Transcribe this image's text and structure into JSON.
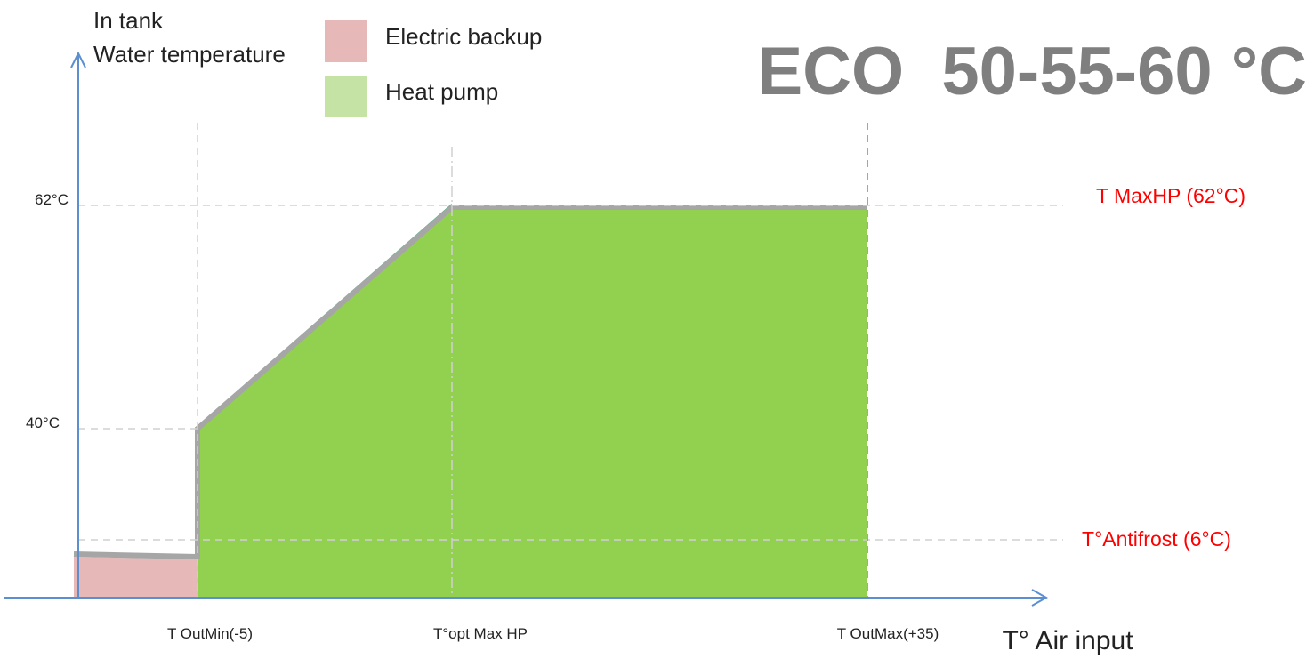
{
  "axis": {
    "y_title": [
      "In tank",
      "Water temperature"
    ],
    "x_title": "T° Air input",
    "y_labels": [
      "62°C",
      "40°C"
    ],
    "x_labels": [
      "T OutMin(-5)",
      "T°opt Max HP",
      "T OutMax(+35)"
    ]
  },
  "legend": [
    "Electric backup",
    "Heat pump"
  ],
  "title": "ECO  50-55-60 °C",
  "annotations": [
    "T MaxHP (62°C)",
    "T°Antifrost (6°C)"
  ]
}
